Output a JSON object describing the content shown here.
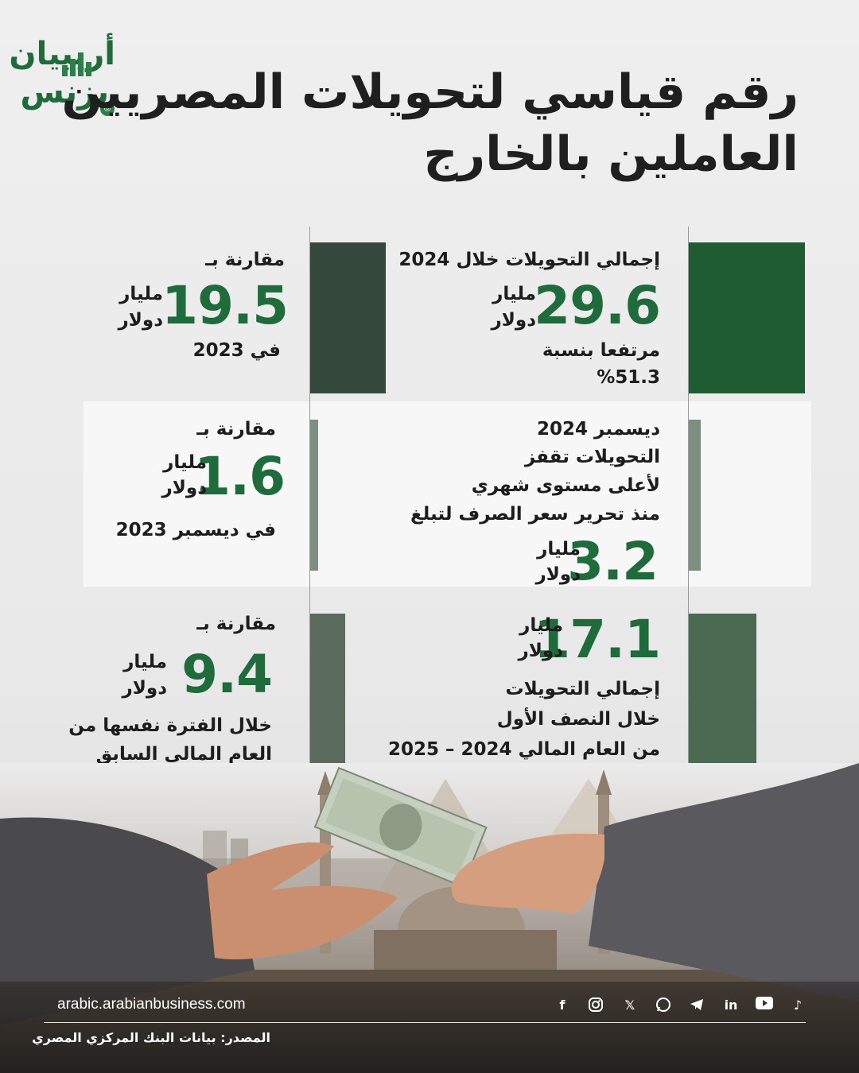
{
  "logo": {
    "line1": "أريبيان",
    "line2": "بزنس"
  },
  "title": {
    "line1": "رقم قياسي لتحويلات المصريين",
    "line2": "العاملين بالخارج"
  },
  "colors": {
    "dark_green": "#1f5c32",
    "slate_green": "#34493b",
    "mid_green": "#5f7e67",
    "accent_number": "#1f6b3c"
  },
  "row1": {
    "right": {
      "label": "إجمالي التحويلات خلال 2024",
      "value": "29.6",
      "unit1": "مليار",
      "unit2": "دولار",
      "note1": "مرتفعا بنسبة",
      "note2": "%51.3"
    },
    "left": {
      "label": "مقارنة بـ",
      "value": "19.5",
      "unit1": "مليار",
      "unit2": "دولار",
      "note": "في 2023"
    }
  },
  "row2": {
    "right": {
      "line1": "ديسمبر 2024",
      "line2": "التحويلات تقفز",
      "line3": "لأعلى مستوى شهري",
      "line4": "منذ تحرير سعر الصرف لتبلغ",
      "value": "3.2",
      "unit1": "مليار",
      "unit2": "دولار"
    },
    "left": {
      "label": "مقارنة بـ",
      "value": "1.6",
      "unit1": "مليار",
      "unit2": "دولار",
      "note": "في ديسمبر 2023"
    }
  },
  "row3": {
    "right": {
      "value": "17.1",
      "unit1": "مليار",
      "unit2": "دولار",
      "line1": "إجمالي التحويلات",
      "line2": "خلال النصف الأول",
      "line3": "من العام المالي 2024 – 2025"
    },
    "left": {
      "label": "مقارنة بـ",
      "value": "9.4",
      "unit1": "مليار",
      "unit2": "دولار",
      "line1": "خلال الفترة نفسها من",
      "line2": "العام المالي السابق"
    }
  },
  "footer": {
    "url": "arabic.arabianbusiness.com",
    "source": "المصدر: بيانات البنك المركزي المصري",
    "social_icons": [
      "facebook-icon",
      "instagram-icon",
      "x-icon",
      "whatsapp-icon",
      "telegram-icon",
      "linkedin-icon",
      "youtube-icon",
      "tiktok-icon"
    ]
  }
}
